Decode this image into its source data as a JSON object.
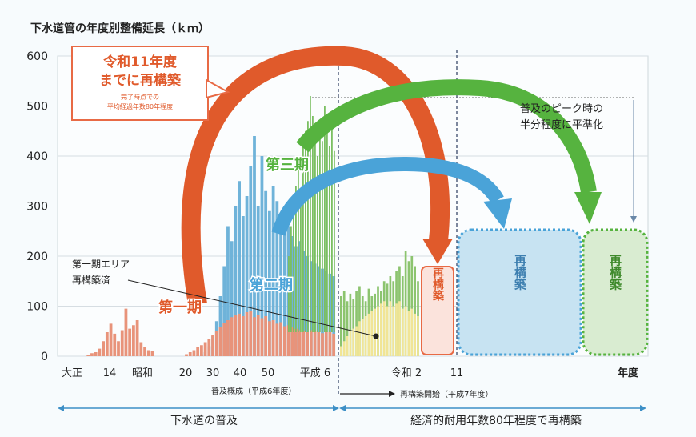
{
  "chart_data": {
    "type": "bar",
    "title": "下水道管の年度別整備延長（ｋｍ）",
    "xlabel": "年度",
    "ylabel": "",
    "ylim": [
      0,
      600
    ],
    "y_ticks": [
      0,
      100,
      200,
      300,
      400,
      500,
      600
    ],
    "x_tick_labels": [
      "大正",
      "14",
      "昭和",
      "20",
      "30",
      "40",
      "50",
      "平成 6",
      "令和 2",
      "11"
    ],
    "grid": true,
    "series": [
      {
        "name": "第一期",
        "color": "#e8937a",
        "values": [
          0,
          0,
          0,
          0,
          0,
          0,
          3,
          6,
          8,
          15,
          30,
          48,
          65,
          45,
          30,
          52,
          95,
          55,
          62,
          72,
          28,
          18,
          12,
          10,
          0,
          0,
          0,
          0,
          0,
          0,
          0,
          0,
          4,
          8,
          12,
          18,
          22,
          28,
          35,
          42,
          50,
          58,
          66,
          72,
          78,
          82,
          85,
          80,
          88,
          90,
          78,
          82,
          76,
          80,
          70,
          72,
          65,
          68,
          60,
          62,
          58,
          55,
          52,
          50,
          48,
          52,
          50,
          48,
          46,
          50,
          48,
          45
        ]
      },
      {
        "name": "第二期",
        "color": "#6fb3d9",
        "values": [
          0,
          0,
          0,
          0,
          0,
          0,
          0,
          0,
          0,
          0,
          0,
          0,
          0,
          0,
          0,
          0,
          0,
          0,
          0,
          0,
          0,
          0,
          0,
          0,
          0,
          0,
          0,
          0,
          0,
          0,
          0,
          0,
          0,
          0,
          0,
          2,
          4,
          8,
          20,
          40,
          70,
          120,
          180,
          260,
          230,
          300,
          350,
          280,
          320,
          380,
          440,
          300,
          400,
          330,
          290,
          340,
          310,
          270,
          250,
          260,
          240,
          220,
          230,
          210,
          200,
          190,
          185,
          180,
          175,
          170,
          165,
          160
        ]
      },
      {
        "name": "第三期",
        "color": "#7bbf62",
        "values": [
          0,
          0,
          0,
          0,
          0,
          0,
          0,
          0,
          0,
          0,
          0,
          0,
          0,
          0,
          0,
          0,
          0,
          0,
          0,
          0,
          0,
          0,
          0,
          0,
          0,
          0,
          0,
          0,
          0,
          0,
          0,
          0,
          0,
          0,
          0,
          0,
          0,
          0,
          0,
          0,
          0,
          0,
          0,
          0,
          0,
          0,
          0,
          0,
          0,
          0,
          0,
          0,
          0,
          0,
          0,
          0,
          0,
          0,
          0,
          0,
          0,
          0,
          0,
          0,
          0,
          0,
          0,
          0,
          0,
          0,
          0,
          0,
          0,
          0,
          0,
          0,
          0,
          0,
          0,
          0,
          0,
          0,
          0,
          0,
          0,
          0,
          0,
          0,
          0,
          0,
          0,
          0,
          0,
          0,
          0,
          0,
          0,
          0,
          0,
          0,
          0,
          0,
          0,
          0,
          0,
          0,
          0,
          0,
          0,
          0,
          0,
          0,
          0,
          0,
          0,
          0,
          0,
          0,
          0,
          0,
          0
        ]
      },
      {
        "name": "第三期-extended",
        "color": "#7bbf62",
        "values": []
      },
      {
        "name": "再構築済",
        "color": "#f1e596",
        "values": []
      }
    ],
    "phase3_values": [
      200,
      260,
      300,
      340,
      390,
      330,
      430,
      450,
      470,
      520,
      480,
      440,
      400,
      470,
      430,
      500,
      460,
      420,
      480,
      410
    ],
    "post_values_total": [
      120,
      130,
      110,
      125,
      115,
      130,
      140,
      120,
      110,
      135,
      120,
      125,
      140,
      130,
      150,
      145,
      160,
      150,
      170,
      180,
      160,
      210,
      190,
      200,
      180,
      150
    ],
    "post_values_filled": [
      20,
      30,
      40,
      50,
      55,
      60,
      70,
      75,
      80,
      85,
      90,
      95,
      100,
      105,
      110,
      100,
      110,
      100,
      105,
      110,
      95,
      100,
      90,
      95,
      85,
      80
    ]
  },
  "labels": {
    "period1": "第一期",
    "period2": "第二期",
    "period3": "第三期",
    "phase1_area_l1": "第一期エリア",
    "phase1_area_l2": "再構築済",
    "reiwa_box_l1": "令和11年度",
    "reiwa_box_l2": "までに再構築",
    "reiwa_box_note1": "完了時点での",
    "reiwa_box_note2": "平均経過年数80年程度",
    "peak_note_l1": "普及のピーク時の",
    "peak_note_l2": "半分程度に平準化",
    "rebuild": "再構築",
    "start_fukyu": "普及概成（平成6年度）",
    "start_rebuild": "再構築開始（平成7年度）",
    "band_left": "下水道の普及",
    "band_right": "経済的耐用年数80年程度で再構築"
  },
  "colors": {
    "red_arrow": "#e05a2b",
    "blue_arrow": "#4aa3d8",
    "green_arrow": "#56b33f",
    "box_border_red": "#e86a45",
    "band_arrow": "#3d8fc6"
  }
}
